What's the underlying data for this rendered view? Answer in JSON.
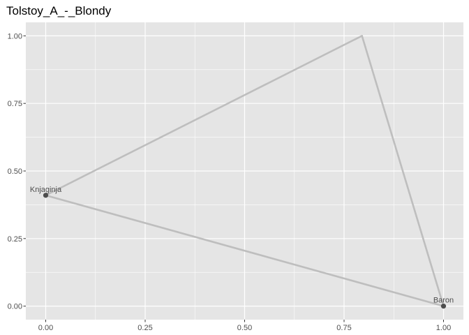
{
  "chart_data": {
    "type": "line",
    "title": "Tolstoy_A_-_Blondy",
    "xlabel": "",
    "ylabel": "",
    "xlim": [
      -0.05,
      1.05
    ],
    "ylim": [
      -0.05,
      1.05
    ],
    "x_ticks": [
      0.0,
      0.25,
      0.5,
      0.75,
      1.0
    ],
    "x_tick_labels": [
      "0.00",
      "0.25",
      "0.50",
      "0.75",
      "1.00"
    ],
    "y_ticks": [
      0.0,
      0.25,
      0.5,
      0.75,
      1.0
    ],
    "y_tick_labels": [
      "0.00",
      "0.25",
      "0.50",
      "0.75",
      "1.00"
    ],
    "grid": true,
    "edges": [
      {
        "from": [
          0.0,
          0.41
        ],
        "to": [
          0.795,
          1.0
        ]
      },
      {
        "from": [
          0.795,
          1.0
        ],
        "to": [
          1.0,
          0.0
        ]
      },
      {
        "from": [
          1.0,
          0.0
        ],
        "to": [
          0.0,
          0.41
        ]
      }
    ],
    "points": [
      {
        "label": "Knjaginja",
        "x": 0.0,
        "y": 0.41
      },
      {
        "label": "Baron",
        "x": 1.0,
        "y": 0.0
      }
    ],
    "colors": {
      "panel_background": "#e5e5e5",
      "grid": "#ffffff",
      "edge": "#bebebe",
      "point": "#4d4d4d"
    }
  }
}
